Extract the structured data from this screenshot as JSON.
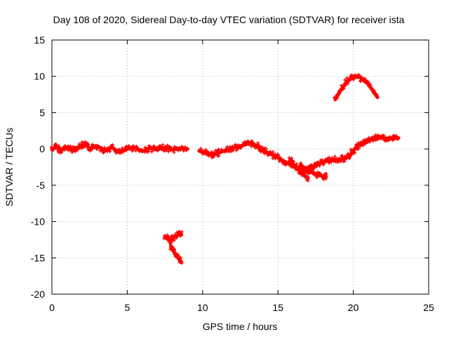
{
  "chart_data": {
    "type": "scatter",
    "title": "Day 108 of 2020, Sidereal Day-to-day VTEC variation (SDTVAR) for receiver ista",
    "xlabel": "GPS time / hours",
    "ylabel": "SDTVAR / TECUs",
    "xlim": [
      0,
      25
    ],
    "ylim": [
      -20,
      15
    ],
    "xticks": [
      0,
      5,
      10,
      15,
      20,
      25
    ],
    "yticks": [
      -20,
      -15,
      -10,
      -5,
      0,
      5,
      10,
      15
    ],
    "grid": true,
    "series_color": "#ff0000",
    "series": [
      {
        "name": "main-track",
        "points": [
          [
            0.0,
            0.0
          ],
          [
            0.3,
            0.3
          ],
          [
            0.6,
            -0.2
          ],
          [
            1.0,
            0.2
          ],
          [
            1.4,
            -0.1
          ],
          [
            1.8,
            0.3
          ],
          [
            2.2,
            0.6
          ],
          [
            2.5,
            0.1
          ],
          [
            3.0,
            0.4
          ],
          [
            3.5,
            -0.2
          ],
          [
            4.0,
            0.2
          ],
          [
            4.5,
            -0.5
          ],
          [
            5.0,
            0.0
          ],
          [
            5.5,
            0.2
          ],
          [
            6.0,
            -0.3
          ],
          [
            6.5,
            0.1
          ],
          [
            7.0,
            -0.1
          ],
          [
            7.5,
            0.2
          ],
          [
            8.0,
            -0.1
          ],
          [
            8.5,
            0.1
          ],
          [
            9.0,
            0.0
          ]
        ]
      },
      {
        "name": "main-track-2",
        "points": [
          [
            9.8,
            -0.3
          ],
          [
            10.2,
            -0.5
          ],
          [
            10.6,
            -0.8
          ],
          [
            11.0,
            -0.6
          ],
          [
            11.5,
            -0.2
          ],
          [
            12.0,
            0.1
          ],
          [
            12.5,
            0.4
          ],
          [
            13.0,
            0.7
          ],
          [
            13.3,
            0.8
          ],
          [
            13.6,
            0.4
          ],
          [
            14.0,
            -0.2
          ],
          [
            14.5,
            -0.7
          ],
          [
            15.0,
            -1.2
          ],
          [
            15.5,
            -1.8
          ],
          [
            16.0,
            -2.4
          ],
          [
            16.5,
            -2.8
          ],
          [
            16.8,
            -3.2
          ],
          [
            17.2,
            -2.5
          ],
          [
            17.6,
            -2.1
          ],
          [
            18.0,
            -1.8
          ],
          [
            18.5,
            -1.5
          ],
          [
            19.0,
            -1.4
          ],
          [
            19.5,
            -1.3
          ],
          [
            19.8,
            -0.8
          ],
          [
            20.0,
            -0.2
          ],
          [
            20.3,
            0.3
          ],
          [
            20.6,
            0.8
          ],
          [
            21.0,
            1.2
          ],
          [
            21.5,
            1.5
          ],
          [
            22.0,
            1.5
          ],
          [
            22.5,
            1.4
          ],
          [
            23.0,
            1.5
          ]
        ]
      },
      {
        "name": "branch-down",
        "points": [
          [
            15.8,
            -1.5
          ],
          [
            16.2,
            -2.5
          ],
          [
            16.6,
            -3.4
          ],
          [
            17.0,
            -4.0
          ]
        ]
      },
      {
        "name": "branch-right",
        "points": [
          [
            16.5,
            -2.2
          ],
          [
            17.0,
            -3.0
          ],
          [
            17.5,
            -3.5
          ],
          [
            18.0,
            -3.8
          ],
          [
            18.2,
            -3.8
          ]
        ]
      },
      {
        "name": "arc-high",
        "points": [
          [
            18.8,
            6.8
          ],
          [
            19.2,
            8.2
          ],
          [
            19.6,
            9.3
          ],
          [
            20.0,
            9.9
          ],
          [
            20.4,
            9.9
          ],
          [
            20.8,
            9.4
          ],
          [
            21.2,
            8.3
          ],
          [
            21.6,
            7.1
          ]
        ]
      },
      {
        "name": "low-segment-1",
        "points": [
          [
            7.5,
            -12.0
          ],
          [
            7.8,
            -12.6
          ],
          [
            8.1,
            -12.2
          ],
          [
            8.4,
            -11.8
          ],
          [
            8.6,
            -11.8
          ]
        ]
      },
      {
        "name": "low-segment-2",
        "points": [
          [
            7.9,
            -13.5
          ],
          [
            8.1,
            -14.2
          ],
          [
            8.4,
            -15.0
          ],
          [
            8.6,
            -15.6
          ]
        ]
      }
    ]
  }
}
